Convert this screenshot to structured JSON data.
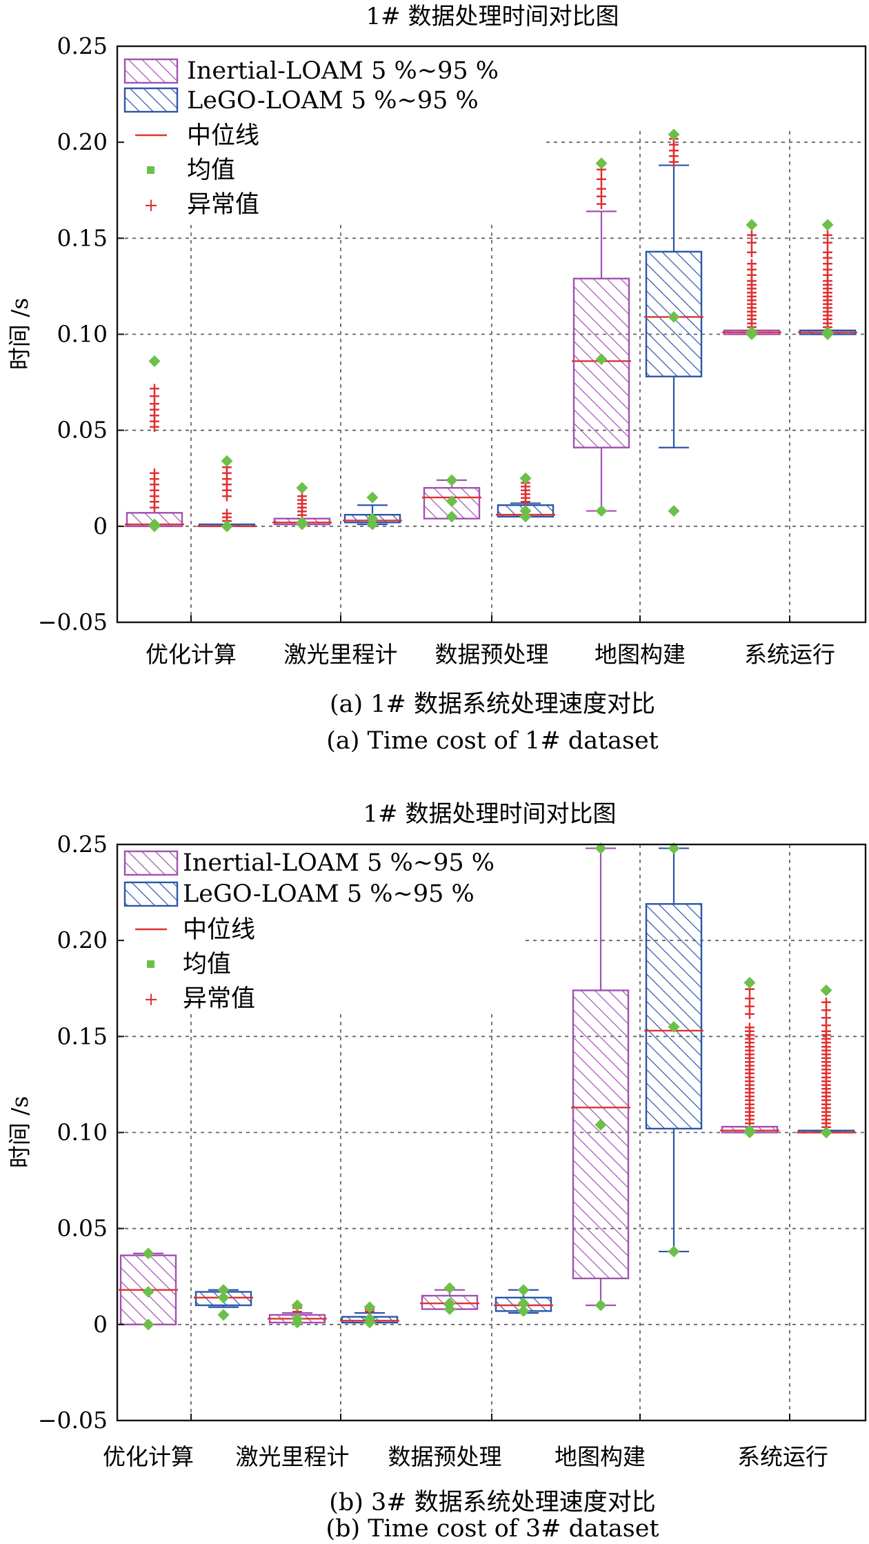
{
  "chart_data": [
    {
      "type": "box",
      "title": "1# 数据处理时间对比图",
      "ylabel": "时间 /s",
      "ylim": [
        -0.05,
        0.25
      ],
      "yticks": [
        -0.05,
        0,
        0.05,
        0.1,
        0.15,
        0.2,
        0.25
      ],
      "ytick_labels": [
        "−0.05",
        "0",
        "0.05",
        "0.10",
        "0.15",
        "0.20",
        "0.25"
      ],
      "categories": [
        "优化计算",
        "激光里程计",
        "数据预处理",
        "地图构建",
        "系统运行"
      ],
      "caption_cn": "(a) 1# 数据系统处理速度对比",
      "caption_en": "(a) Time cost of 1# dataset",
      "legend": [
        "Inertial-LOAM 5 %~95 %",
        "LeGO-LOAM 5 %~95 %",
        "中位线",
        "均值",
        "异常值"
      ],
      "series": [
        {
          "name": "Inertial-LOAM 5 %~95 %",
          "color": "#a050b0",
          "boxes": [
            {
              "q1": 0.0,
              "median": 0.001,
              "q3": 0.007,
              "wlow": 0.0,
              "whigh": 0.007,
              "mean": 0.001,
              "minpt": 0.0,
              "maxpt": 0.086,
              "outliers": [
                0.01,
                0.013,
                0.016,
                0.019,
                0.022,
                0.025,
                0.028,
                0.052,
                0.055,
                0.058,
                0.061,
                0.064,
                0.068,
                0.072
              ]
            },
            {
              "q1": 0.001,
              "median": 0.002,
              "q3": 0.004,
              "wlow": 0.001,
              "whigh": 0.004,
              "mean": 0.002,
              "minpt": 0.001,
              "maxpt": 0.02,
              "outliers": [
                0.006,
                0.008,
                0.01,
                0.012,
                0.014,
                0.016
              ]
            },
            {
              "q1": 0.004,
              "median": 0.015,
              "q3": 0.02,
              "wlow": 0.004,
              "whigh": 0.024,
              "mean": 0.013,
              "minpt": 0.005,
              "maxpt": 0.024,
              "outliers": []
            },
            {
              "q1": 0.041,
              "median": 0.086,
              "q3": 0.129,
              "wlow": 0.008,
              "whigh": 0.164,
              "mean": 0.087,
              "minpt": 0.008,
              "maxpt": 0.189,
              "outliers": [
                0.168,
                0.172,
                0.176,
                0.181,
                0.186
              ]
            },
            {
              "q1": 0.1,
              "median": 0.101,
              "q3": 0.102,
              "wlow": 0.1,
              "whigh": 0.102,
              "mean": 0.101,
              "minpt": 0.1,
              "maxpt": 0.157,
              "outliers": [
                0.104,
                0.106,
                0.108,
                0.11,
                0.112,
                0.114,
                0.116,
                0.118,
                0.12,
                0.122,
                0.124,
                0.126,
                0.128,
                0.131,
                0.134,
                0.137,
                0.143,
                0.148,
                0.152
              ]
            }
          ]
        },
        {
          "name": "LeGO-LOAM 5 %~95 %",
          "color": "#2a55a8",
          "boxes": [
            {
              "q1": 0.0,
              "median": 0.0,
              "q3": 0.001,
              "wlow": 0.0,
              "whigh": 0.001,
              "mean": 0.0,
              "minpt": 0.0,
              "maxpt": 0.034,
              "outliers": [
                0.003,
                0.005,
                0.007,
                0.016,
                0.019,
                0.022,
                0.025,
                0.028,
                0.031
              ]
            },
            {
              "q1": 0.002,
              "median": 0.003,
              "q3": 0.006,
              "wlow": 0.001,
              "whigh": 0.011,
              "mean": 0.004,
              "minpt": 0.001,
              "maxpt": 0.015,
              "outliers": []
            },
            {
              "q1": 0.005,
              "median": 0.006,
              "q3": 0.011,
              "wlow": 0.005,
              "whigh": 0.012,
              "mean": 0.008,
              "minpt": 0.005,
              "maxpt": 0.025,
              "outliers": [
                0.013,
                0.015,
                0.017,
                0.019,
                0.021,
                0.023
              ]
            },
            {
              "q1": 0.078,
              "median": 0.109,
              "q3": 0.143,
              "wlow": 0.041,
              "whigh": 0.188,
              "mean": 0.109,
              "minpt": 0.008,
              "maxpt": 0.204,
              "outliers": [
                0.19,
                0.193,
                0.196,
                0.199,
                0.202
              ]
            },
            {
              "q1": 0.1,
              "median": 0.101,
              "q3": 0.102,
              "wlow": 0.1,
              "whigh": 0.102,
              "mean": 0.101,
              "minpt": 0.1,
              "maxpt": 0.157,
              "outliers": [
                0.104,
                0.106,
                0.108,
                0.11,
                0.112,
                0.114,
                0.116,
                0.118,
                0.12,
                0.122,
                0.124,
                0.126,
                0.128,
                0.131,
                0.134,
                0.137,
                0.14,
                0.143,
                0.148,
                0.152
              ]
            }
          ]
        }
      ]
    },
    {
      "type": "box",
      "title": "1# 数据处理时间对比图",
      "ylabel": "时间 /s",
      "ylim": [
        -0.05,
        0.25
      ],
      "yticks": [
        -0.05,
        0,
        0.05,
        0.1,
        0.15,
        0.2,
        0.25
      ],
      "ytick_labels": [
        "−0.05",
        "0",
        "0.05",
        "0.10",
        "0.15",
        "0.20",
        "0.25"
      ],
      "categories": [
        "优化计算",
        "激光里程计",
        "数据预处理",
        "地图构建",
        "系统运行"
      ],
      "caption_cn": "(b) 3# 数据系统处理速度对比",
      "caption_en": "(b) Time cost of 3# dataset",
      "legend": [
        "Inertial-LOAM 5 %~95 %",
        "LeGO-LOAM 5 %~95 %",
        "中位线",
        "均值",
        "异常值"
      ],
      "series": [
        {
          "name": "Inertial-LOAM 5 %~95 %",
          "color": "#a050b0",
          "boxes": [
            {
              "q1": 0.0,
              "median": 0.018,
              "q3": 0.036,
              "wlow": 0.0,
              "whigh": 0.037,
              "mean": 0.017,
              "minpt": 0.0,
              "maxpt": 0.037,
              "outliers": []
            },
            {
              "q1": 0.001,
              "median": 0.003,
              "q3": 0.005,
              "wlow": 0.001,
              "whigh": 0.006,
              "mean": 0.003,
              "minpt": 0.001,
              "maxpt": 0.01,
              "outliers": [
                0.007,
                0.009
              ]
            },
            {
              "q1": 0.008,
              "median": 0.011,
              "q3": 0.015,
              "wlow": 0.008,
              "whigh": 0.018,
              "mean": 0.011,
              "minpt": 0.008,
              "maxpt": 0.019,
              "outliers": []
            },
            {
              "q1": 0.024,
              "median": 0.113,
              "q3": 0.174,
              "wlow": 0.01,
              "whigh": 0.248,
              "mean": 0.104,
              "minpt": 0.01,
              "maxpt": 0.248,
              "outliers": []
            },
            {
              "q1": 0.1,
              "median": 0.101,
              "q3": 0.103,
              "wlow": 0.1,
              "whigh": 0.103,
              "mean": 0.101,
              "minpt": 0.1,
              "maxpt": 0.178,
              "outliers": [
                0.105,
                0.107,
                0.109,
                0.111,
                0.113,
                0.115,
                0.117,
                0.119,
                0.121,
                0.123,
                0.125,
                0.127,
                0.129,
                0.131,
                0.133,
                0.135,
                0.137,
                0.139,
                0.141,
                0.143,
                0.145,
                0.147,
                0.149,
                0.151,
                0.153,
                0.155,
                0.162,
                0.166,
                0.17,
                0.175
              ]
            }
          ]
        },
        {
          "name": "LeGO-LOAM 5 %~95 %",
          "color": "#2a55a8",
          "boxes": [
            {
              "q1": 0.01,
              "median": 0.014,
              "q3": 0.017,
              "wlow": 0.009,
              "whigh": 0.018,
              "mean": 0.014,
              "minpt": 0.005,
              "maxpt": 0.018,
              "outliers": []
            },
            {
              "q1": 0.001,
              "median": 0.002,
              "q3": 0.004,
              "wlow": 0.001,
              "whigh": 0.006,
              "mean": 0.003,
              "minpt": 0.001,
              "maxpt": 0.009,
              "outliers": [
                0.007,
                0.008
              ]
            },
            {
              "q1": 0.007,
              "median": 0.01,
              "q3": 0.014,
              "wlow": 0.006,
              "whigh": 0.018,
              "mean": 0.011,
              "minpt": 0.007,
              "maxpt": 0.018,
              "outliers": []
            },
            {
              "q1": 0.102,
              "median": 0.153,
              "q3": 0.219,
              "wlow": 0.038,
              "whigh": 0.248,
              "mean": 0.155,
              "minpt": 0.038,
              "maxpt": 0.248,
              "outliers": []
            },
            {
              "q1": 0.1,
              "median": 0.1,
              "q3": 0.101,
              "wlow": 0.1,
              "whigh": 0.101,
              "mean": 0.1,
              "minpt": 0.1,
              "maxpt": 0.174,
              "outliers": [
                0.103,
                0.105,
                0.107,
                0.109,
                0.111,
                0.113,
                0.115,
                0.117,
                0.119,
                0.121,
                0.123,
                0.125,
                0.127,
                0.129,
                0.131,
                0.133,
                0.135,
                0.137,
                0.139,
                0.141,
                0.143,
                0.145,
                0.147,
                0.149,
                0.151,
                0.153,
                0.156,
                0.16,
                0.164,
                0.168
              ]
            }
          ]
        }
      ]
    }
  ]
}
